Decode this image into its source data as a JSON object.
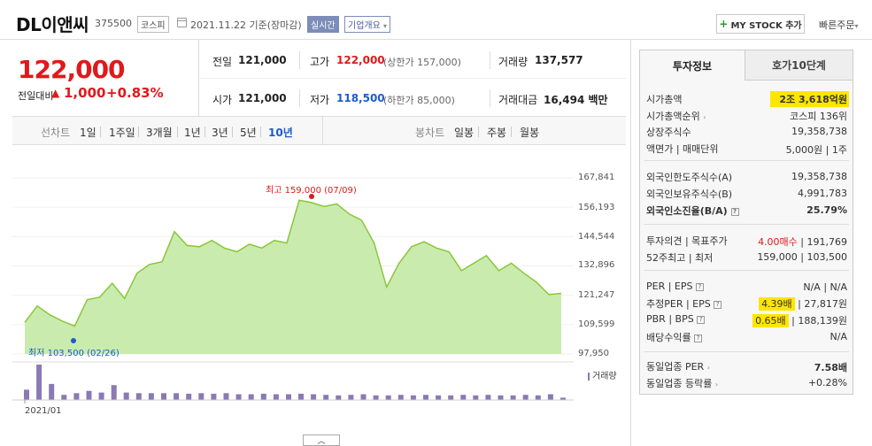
{
  "header": {
    "name": "DL이앤씨",
    "code": "375500",
    "market": "코스피",
    "date": "2021.11.22",
    "date_note": "기준(장마감)",
    "realtime": "실시간",
    "overview": "기업개요",
    "mystock": "MY STOCK 추가",
    "quick_order": "빠른주문"
  },
  "price": {
    "current": "122,000",
    "change_label": "전일대비",
    "change_amount": "1,000",
    "change_pct": "+0.83%",
    "up_color": "#e0191b"
  },
  "quote": {
    "prev_label": "전일",
    "prev": "121,000",
    "high_label": "고가",
    "high": "122,000",
    "upper_limit": "(상한가 157,000)",
    "volume_label": "거래량",
    "volume": "137,577",
    "open_label": "시가",
    "open": "121,000",
    "low_label": "저가",
    "low": "118,500",
    "lower_limit": "(하한가 85,000)",
    "amount_label": "거래대금",
    "amount": "16,494",
    "amount_unit": "백만"
  },
  "periods": {
    "line_label": "선차트",
    "line_items": [
      "1일",
      "1주일",
      "3개월",
      "1년",
      "3년",
      "5년",
      "10년"
    ],
    "active": "10년",
    "candle_label": "봉차트",
    "candle_items": [
      "일봉",
      "주봉",
      "월봉"
    ]
  },
  "chart_data": {
    "type": "area",
    "y_ticks": [
      "167,841",
      "156,193",
      "144,544",
      "132,896",
      "121,247",
      "109,599",
      "97,950"
    ],
    "ylim": [
      97950,
      167841
    ],
    "x_tick": "2021/01",
    "max_label": "최고 159,000 (07/09)",
    "min_label": "최저 103,500 (02/26)",
    "volume_label": "거래량",
    "line_color": "#8ac63a",
    "fill_color": "#c9ecae",
    "values": [
      110500,
      117000,
      113500,
      111000,
      109000,
      119500,
      120500,
      126000,
      120000,
      130000,
      133500,
      134500,
      146500,
      141000,
      140500,
      143000,
      140000,
      138500,
      141500,
      140000,
      143000,
      142000,
      159000,
      158000,
      156500,
      157500,
      153500,
      151000,
      142000,
      124500,
      134000,
      140500,
      142500,
      140000,
      138500,
      131000,
      134000,
      137000,
      131000,
      134000,
      130000,
      126500,
      121500,
      122000
    ],
    "volumes": [
      18,
      62,
      28,
      9,
      12,
      16,
      13,
      26,
      13,
      12,
      12,
      12,
      12,
      11,
      12,
      11,
      12,
      10,
      10,
      11,
      10,
      10,
      11,
      10,
      9,
      8,
      9,
      10,
      8,
      8,
      9,
      8,
      9,
      8,
      8,
      9,
      8,
      9,
      8,
      8,
      9,
      8,
      10,
      4
    ],
    "volume_color": "#8b79b3"
  },
  "tabs": {
    "active": "투자정보",
    "other": "호가10단계"
  },
  "investment": {
    "mcap_label": "시가총액",
    "mcap": "2조 3,618억원",
    "mcap_rank_label": "시가총액순위",
    "mcap_rank": "코스피 136위",
    "shares_label": "상장주식수",
    "shares": "19,358,738",
    "par_label": "액면가 | 매매단위",
    "par": "5,000원 | 1주",
    "foreign_limit_label": "외국인한도주식수(A)",
    "foreign_limit": "19,358,738",
    "foreign_hold_label": "외국인보유주식수(B)",
    "foreign_hold": "4,991,783",
    "foreign_ratio_label": "외국인소진율(B/A)",
    "foreign_ratio": "25.79%",
    "opinion_label": "투자의견 | 목표주가",
    "opinion": "4.00매수",
    "target": "191,769",
    "range_label": "52주최고 | 최저",
    "range": "159,000 | 103,500",
    "per_label": "PER | EPS",
    "per": "N/A | N/A",
    "est_label": "추정PER | EPS",
    "est_per": "4.39배",
    "est_eps": "27,817원",
    "pbr_label": "PBR | BPS",
    "pbr": "0.65배",
    "bps": "188,139원",
    "div_label": "배당수익률",
    "div": "N/A",
    "sector_per_label": "동일업종 PER",
    "sector_per": "7.58배",
    "sector_chg_label": "동일업종 등락률",
    "sector_chg": "+0.28%"
  }
}
